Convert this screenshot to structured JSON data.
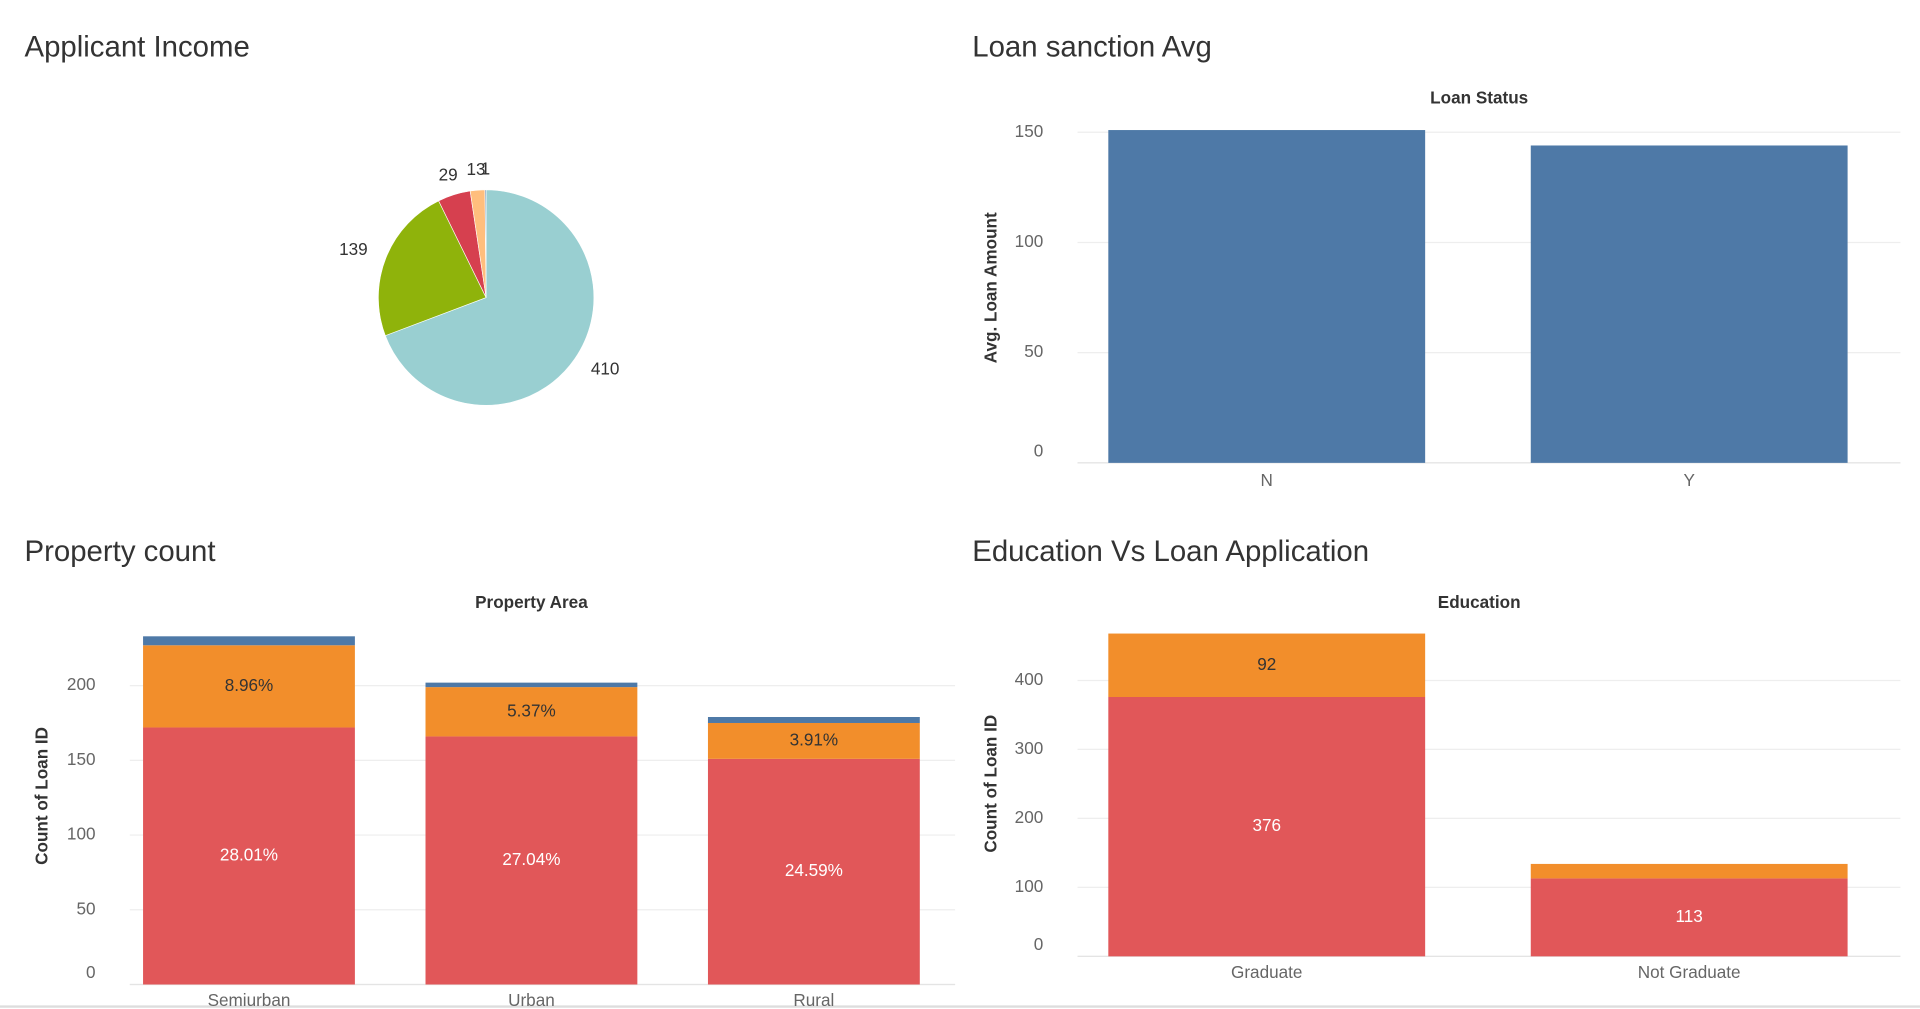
{
  "chart_data": [
    {
      "type": "pie",
      "title": "Applicant Income",
      "values": [
        410,
        139,
        29,
        13,
        1
      ],
      "colors": [
        "#99cfd1",
        "#8fb30b",
        "#d6404f",
        "#ffbe7d",
        "#4e79a7"
      ]
    },
    {
      "type": "bar",
      "title": "Loan sanction Avg",
      "header": "Loan Status",
      "ylabel": "Avg. Loan Amount",
      "categories": [
        "N",
        "Y"
      ],
      "values": [
        151,
        144
      ],
      "color": "#4e79a7",
      "ylim": [
        0,
        155
      ],
      "yticks": [
        0,
        50,
        100,
        150
      ],
      "grid": true
    },
    {
      "type": "stacked_bar",
      "title": "Property count",
      "header": "Property Area",
      "ylabel": "Count of Loan ID",
      "categories": [
        "Semiurban",
        "Urban",
        "Rural"
      ],
      "series": [
        {
          "color": "#e15759",
          "values": [
            172,
            166,
            151
          ],
          "share_labels": [
            "28.01%",
            "27.04%",
            "24.59%"
          ]
        },
        {
          "color": "#f28e2b",
          "values": [
            55,
            33,
            24
          ],
          "share_labels": [
            "8.96%",
            "5.37%",
            "3.91%"
          ]
        },
        {
          "color": "#4e79a7",
          "values": [
            6,
            3,
            4
          ]
        }
      ],
      "ylim": [
        0,
        245
      ],
      "yticks": [
        0,
        50,
        100,
        150,
        200
      ],
      "grid": true
    },
    {
      "type": "stacked_bar",
      "title": "Education Vs Loan Application",
      "header": "Education",
      "ylabel": "Count of Loan ID",
      "categories": [
        "Graduate",
        "Not Graduate"
      ],
      "series": [
        {
          "color": "#e15759",
          "values": [
            376,
            113
          ],
          "value_labels": [
            "376",
            "113"
          ]
        },
        {
          "color": "#f28e2b",
          "values": [
            92,
            21
          ],
          "value_labels": [
            "92",
            null
          ]
        }
      ],
      "ylim": [
        0,
        490
      ],
      "yticks": [
        0,
        100,
        200,
        300,
        400
      ],
      "grid": true
    }
  ]
}
